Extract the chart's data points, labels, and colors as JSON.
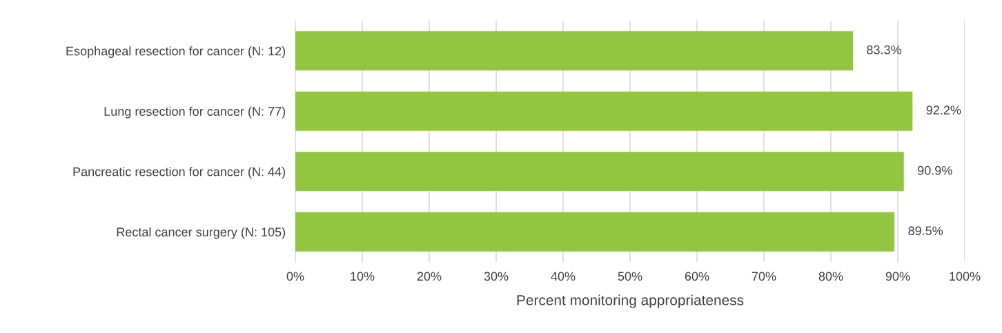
{
  "chart_data": {
    "type": "bar",
    "orientation": "horizontal",
    "xlabel": "Percent monitoring appropriateness",
    "categories": [
      "Esophageal resection for cancer (N: 12)",
      "Lung resection for cancer (N: 77)",
      "Pancreatic resection for cancer (N: 44)",
      "Rectal cancer surgery (N: 105)"
    ],
    "values": [
      83.3,
      92.2,
      90.9,
      89.5
    ],
    "color": "#92c641",
    "value_labels": [
      "83.3%",
      "92.2%",
      "90.9%",
      "89.5%"
    ],
    "xlim": [
      0,
      100
    ],
    "xticks": [
      {
        "value": 0,
        "label": "0%"
      },
      {
        "value": 10,
        "label": "10%"
      },
      {
        "value": 20,
        "label": "20%"
      },
      {
        "value": 30,
        "label": "30%"
      },
      {
        "value": 40,
        "label": "40%"
      },
      {
        "value": 50,
        "label": "50%"
      },
      {
        "value": 60,
        "label": "60%"
      },
      {
        "value": 70,
        "label": "70%"
      },
      {
        "value": 80,
        "label": "80%"
      },
      {
        "value": 90,
        "label": "90%"
      },
      {
        "value": 100,
        "label": "100%"
      }
    ],
    "grid": "x",
    "legend": false
  }
}
